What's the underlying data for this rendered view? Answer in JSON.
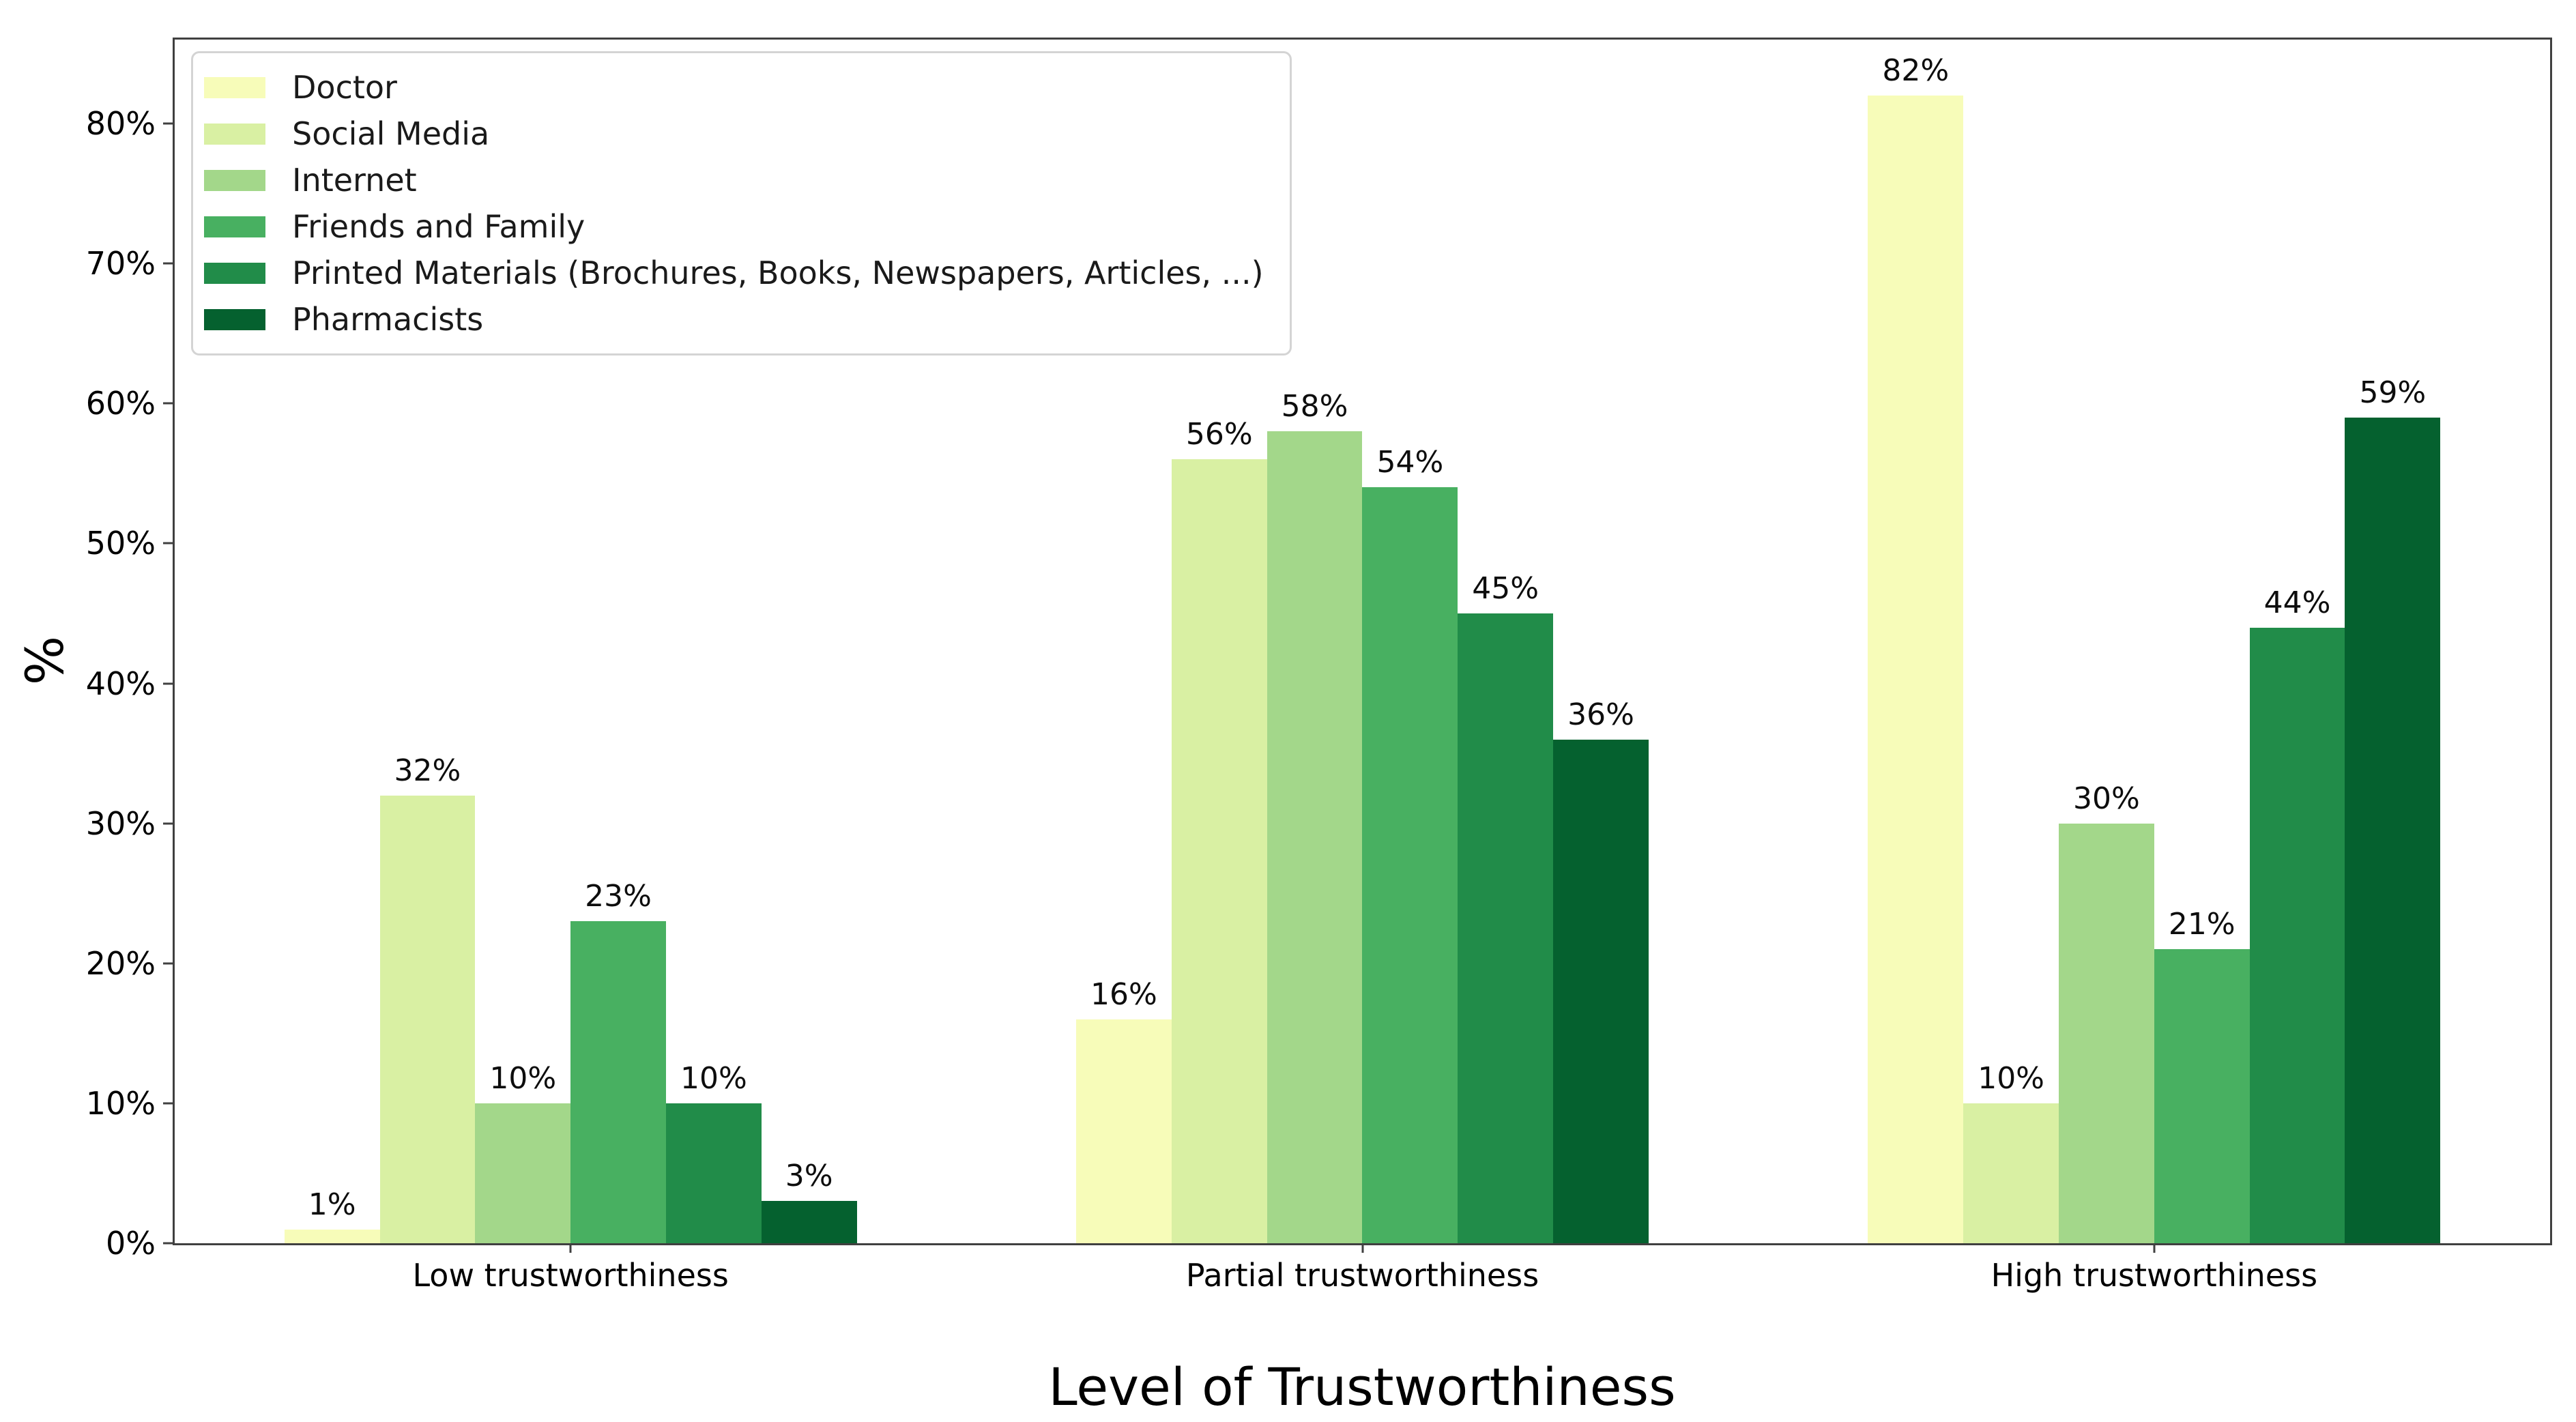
{
  "chart_data": {
    "type": "bar",
    "title": "",
    "xlabel": "Level of Trustworthiness",
    "ylabel": "%",
    "categories": [
      "Low trustworthiness",
      "Partial trustworthiness",
      "High trustworthiness"
    ],
    "series": [
      {
        "name": "Doctor",
        "color": "#f7fcb9",
        "values": [
          1,
          16,
          82
        ]
      },
      {
        "name": "Social Media",
        "color": "#d9f0a3",
        "values": [
          32,
          56,
          10
        ]
      },
      {
        "name": "Internet",
        "color": "#a3d78a",
        "values": [
          10,
          58,
          30
        ]
      },
      {
        "name": "Friends and Family",
        "color": "#48b061",
        "values": [
          23,
          54,
          21
        ]
      },
      {
        "name": "Printed Materials (Brochures, Books, Newspapers, Articles, ...)",
        "color": "#218c49",
        "values": [
          10,
          45,
          44
        ]
      },
      {
        "name": "Pharmacists",
        "color": "#05612f",
        "values": [
          3,
          36,
          59
        ]
      }
    ],
    "value_label_suffix": "%",
    "y_ticks": [
      {
        "value": 0,
        "label": "0%"
      },
      {
        "value": 10,
        "label": "10%"
      },
      {
        "value": 20,
        "label": "20%"
      },
      {
        "value": 30,
        "label": "30%"
      },
      {
        "value": 40,
        "label": "40%"
      },
      {
        "value": 50,
        "label": "50%"
      },
      {
        "value": 60,
        "label": "60%"
      },
      {
        "value": 70,
        "label": "70%"
      },
      {
        "value": 80,
        "label": "80%"
      }
    ],
    "ylim": [
      0,
      86
    ],
    "grid": false,
    "legend_position": "upper-left",
    "bar_group_fill_fraction": 0.723
  }
}
